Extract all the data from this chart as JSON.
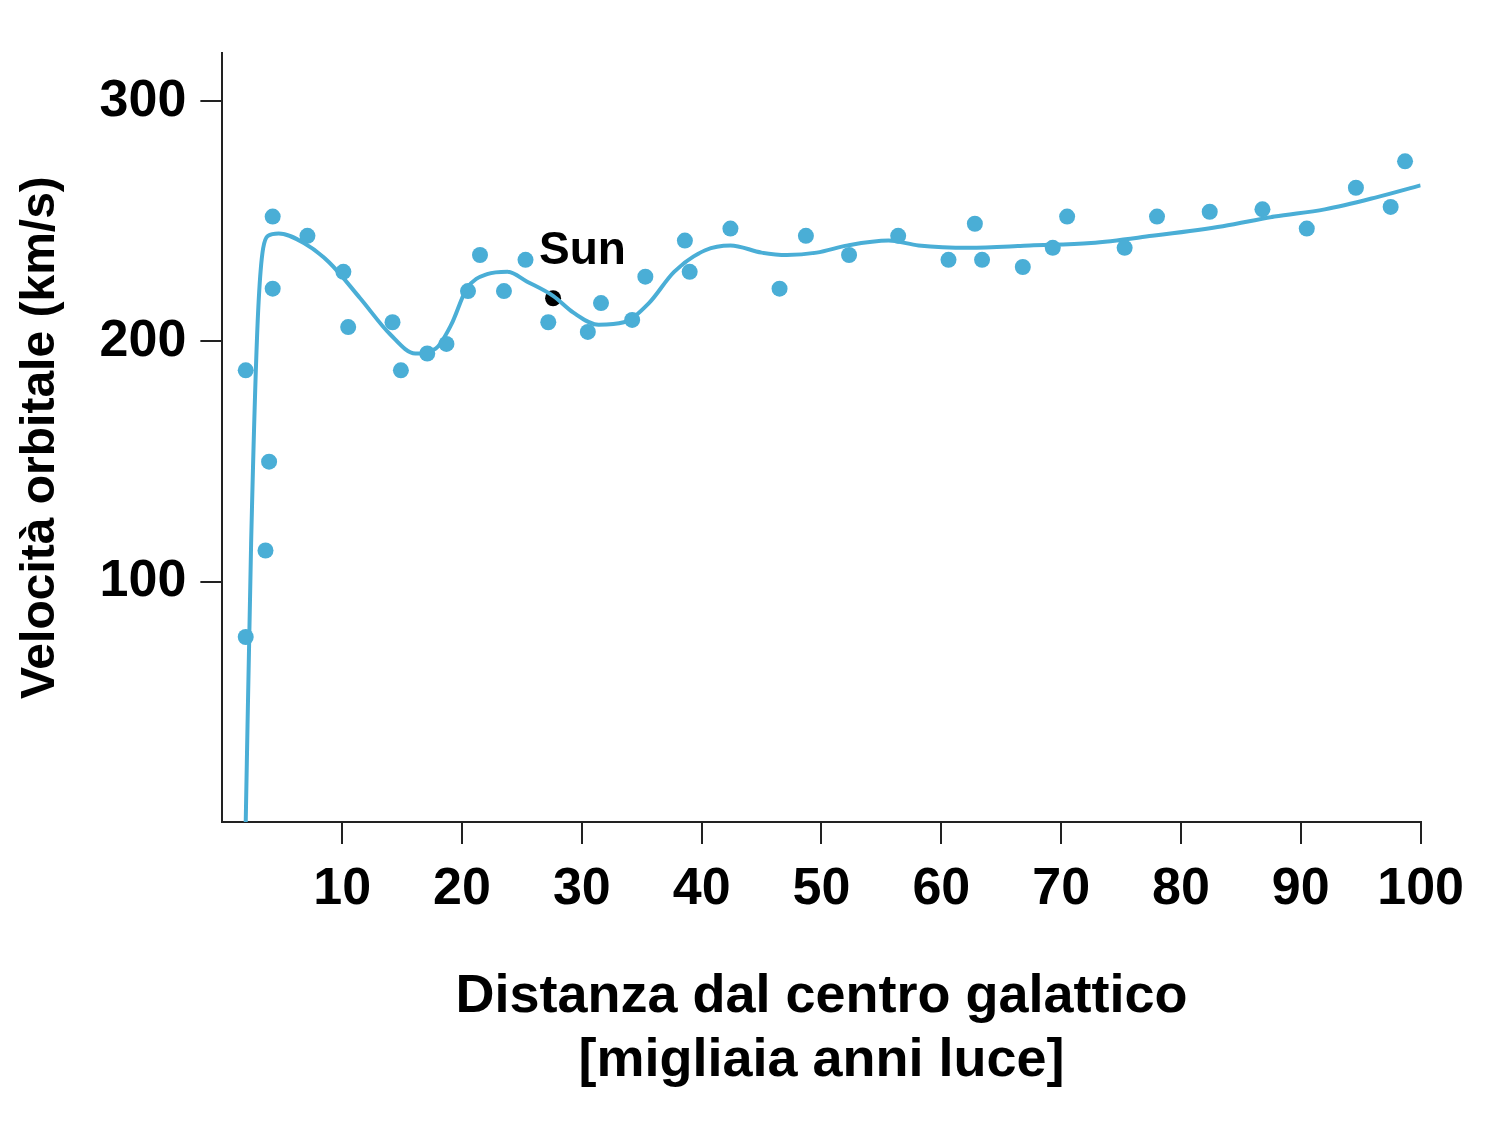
{
  "chart_data": {
    "type": "scatter",
    "xlabel": "Distanza dal centro galattico\n[migliaia anni luce]",
    "ylabel": "Velocità orbitale (km/s)",
    "xlim": [
      0,
      100
    ],
    "xticks": [
      10,
      20,
      30,
      40,
      50,
      60,
      70,
      80,
      90,
      100
    ],
    "ylim": [
      0,
      320
    ],
    "yticks": [
      100,
      200,
      300
    ],
    "grid": false,
    "legend": false,
    "marker": "circle",
    "series": [
      {
        "type": "scatter",
        "color": "#4aaed6",
        "x": [
          1.95,
          1.95,
          3.6,
          3.9,
          4.2,
          4.2,
          7.1,
          10.1,
          10.5,
          14.2,
          14.9,
          17.1,
          18.7,
          20.5,
          21.5,
          23.5,
          25.3,
          27.2,
          30.5,
          31.6,
          34.2,
          35.3,
          38.6,
          39.0,
          42.4,
          46.5,
          48.7,
          52.3,
          56.4,
          60.6,
          62.8,
          63.4,
          66.8,
          69.3,
          70.5,
          75.3,
          78.0,
          82.4,
          86.8,
          90.5,
          94.6,
          97.5,
          98.7
        ],
        "values": [
          188,
          77,
          113,
          150,
          252,
          222,
          244,
          229,
          206,
          208,
          188,
          195,
          199,
          221,
          236,
          221,
          234,
          208,
          204,
          216,
          209,
          227,
          242,
          229,
          247,
          222,
          244,
          236,
          244,
          234,
          249,
          234,
          231,
          239,
          252,
          239,
          252,
          254,
          255,
          247,
          264,
          256,
          275
        ]
      },
      {
        "type": "line",
        "color": "#4aaed6",
        "marker": "none",
        "x": [
          1.95,
          2.4,
          3,
          3.8,
          4.7,
          6.8,
          8.9,
          11.5,
          14,
          16.1,
          17.8,
          19.1,
          20.4,
          22.1,
          23.8,
          25.4,
          27.6,
          29.3,
          31.4,
          33.5,
          35.6,
          37.7,
          40.3,
          42.4,
          45,
          47.1,
          49.6,
          52.2,
          55.6,
          58.1,
          62.3,
          67.4,
          72.5,
          77.6,
          83.5,
          87.8,
          92,
          96.3,
          100
        ],
        "values": [
          0,
          116,
          214,
          244,
          245,
          241,
          233,
          218,
          203,
          195,
          197,
          207,
          222,
          228,
          229,
          225,
          219,
          212,
          207,
          208,
          216,
          229,
          238,
          240,
          237,
          236,
          237,
          240,
          242,
          240,
          239,
          240,
          241,
          244,
          248,
          252,
          255,
          260,
          265
        ]
      },
      {
        "type": "scatter",
        "name": "Sun",
        "color": "#000000",
        "x": [
          27.6
        ],
        "values": [
          218
        ]
      }
    ]
  }
}
